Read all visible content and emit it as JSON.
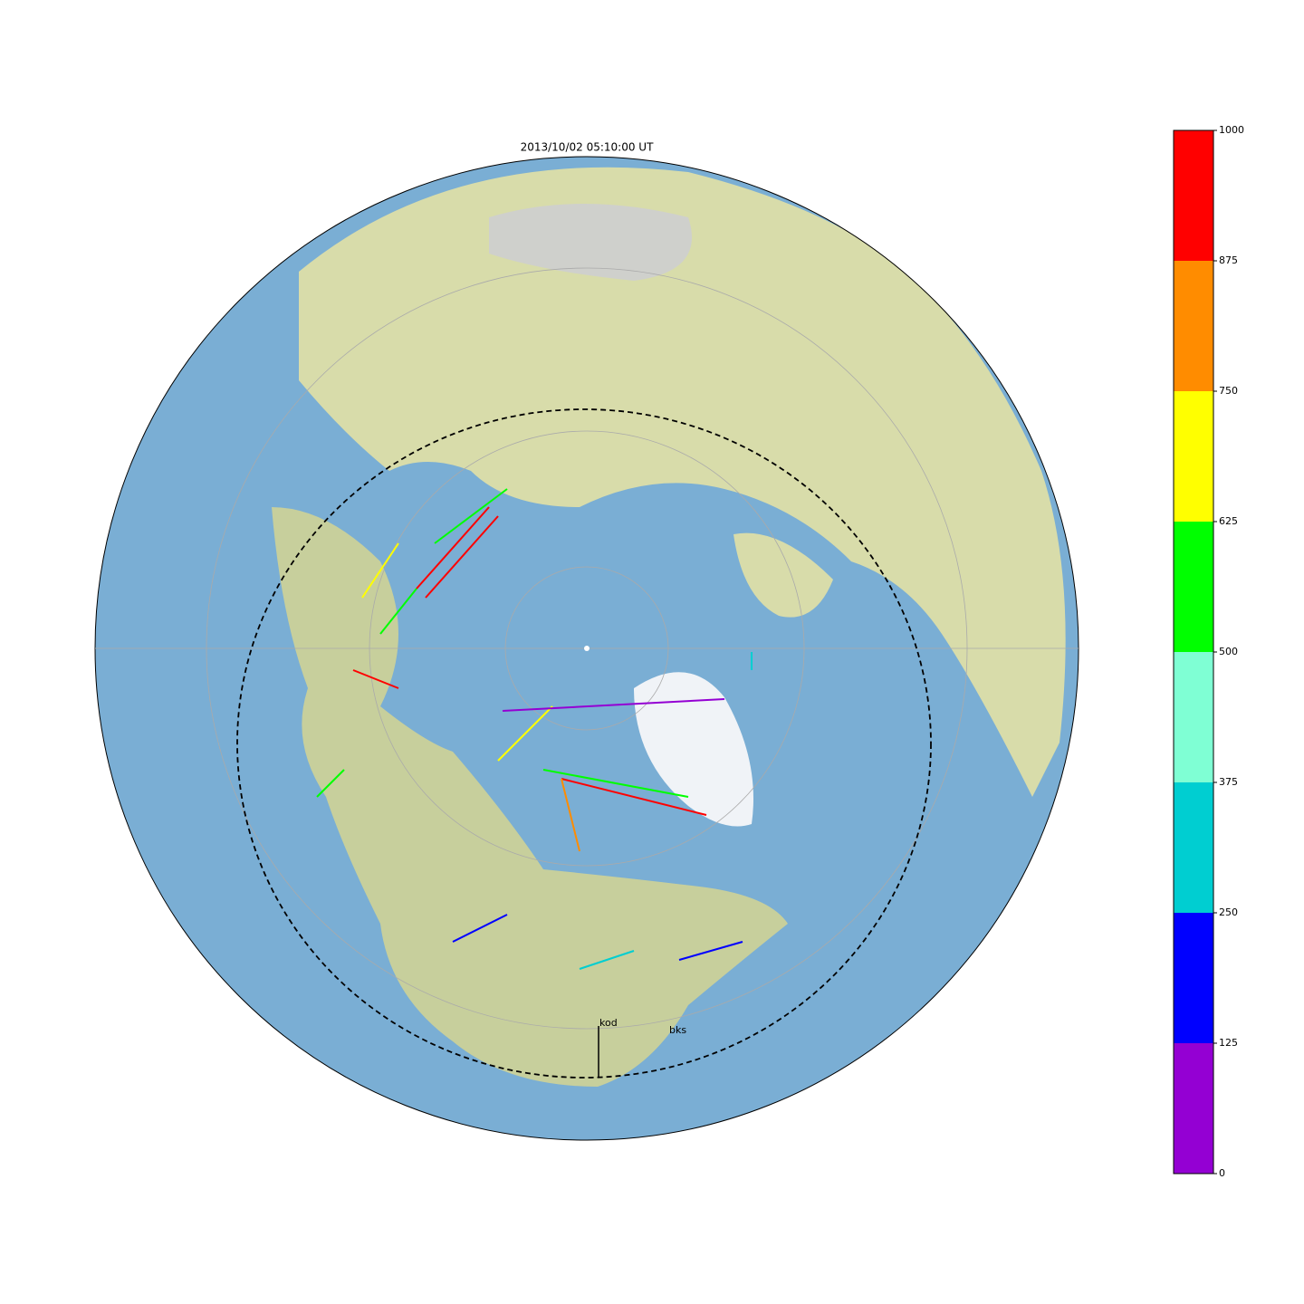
{
  "title": "2013/10/02 05:10:00 UT",
  "colorbar": {
    "ticks": [
      0,
      125,
      250,
      375,
      500,
      625,
      750,
      875,
      1000
    ],
    "colors": [
      "#9400d3",
      "#0000ff",
      "#00ced1",
      "#7fffd4",
      "#00ff00",
      "#ffff00",
      "#ff8c00",
      "#ff0000"
    ]
  },
  "stations": [
    "kod",
    "bks"
  ]
}
